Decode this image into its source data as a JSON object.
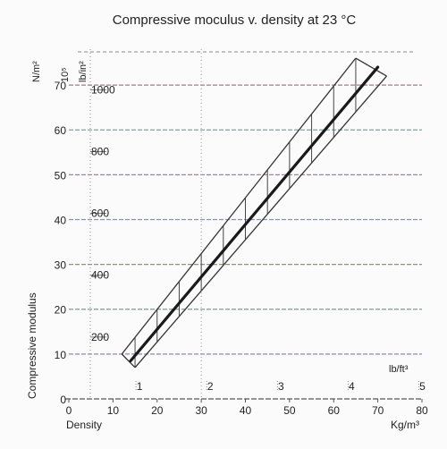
{
  "chart_data": {
    "type": "line",
    "title": "Compressive moculus v. density at 23 °C",
    "xlabel": "Density",
    "ylabel": "Compressive modulus",
    "x_unit": "Kg/m³",
    "x2_unit": "lb/ft³",
    "y_unit": "N/m²",
    "y_exponent": "10⁵",
    "y2_unit": "lb/in²",
    "xlim": [
      0,
      80
    ],
    "ylim": [
      0,
      78
    ],
    "grid": true,
    "x_ticks": [
      "0",
      "10",
      "20",
      "30",
      "40",
      "50",
      "60",
      "70",
      "80"
    ],
    "y_ticks": [
      "0",
      "10",
      "20",
      "30",
      "40",
      "50",
      "60",
      "70"
    ],
    "x2_ticks": [
      {
        "label": "1",
        "kg": 16.02
      },
      {
        "label": "2",
        "kg": 32.04
      },
      {
        "label": "3",
        "kg": 48.06
      },
      {
        "label": "4",
        "kg": 64.07
      },
      {
        "label": "5",
        "kg": 80.09
      }
    ],
    "y2_ticks": [
      {
        "label": "200",
        "nm2": 13.79
      },
      {
        "label": "400",
        "nm2": 27.58
      },
      {
        "label": "600",
        "nm2": 41.37
      },
      {
        "label": "800",
        "nm2": 55.16
      },
      {
        "label": "1000",
        "nm2": 68.95
      }
    ],
    "series": [
      {
        "role": "mean",
        "x": [
          14,
          70
        ],
        "y": [
          8.5,
          74
        ]
      },
      {
        "role": "upper-bound",
        "x": [
          12,
          65
        ],
        "y": [
          10,
          76
        ]
      },
      {
        "role": "lower-bound",
        "x": [
          15,
          72
        ],
        "y": [
          7,
          72
        ]
      }
    ],
    "band_verticals_x": [
      15,
      20,
      25,
      30,
      35,
      40,
      45,
      50,
      55,
      60,
      65,
      70
    ]
  }
}
